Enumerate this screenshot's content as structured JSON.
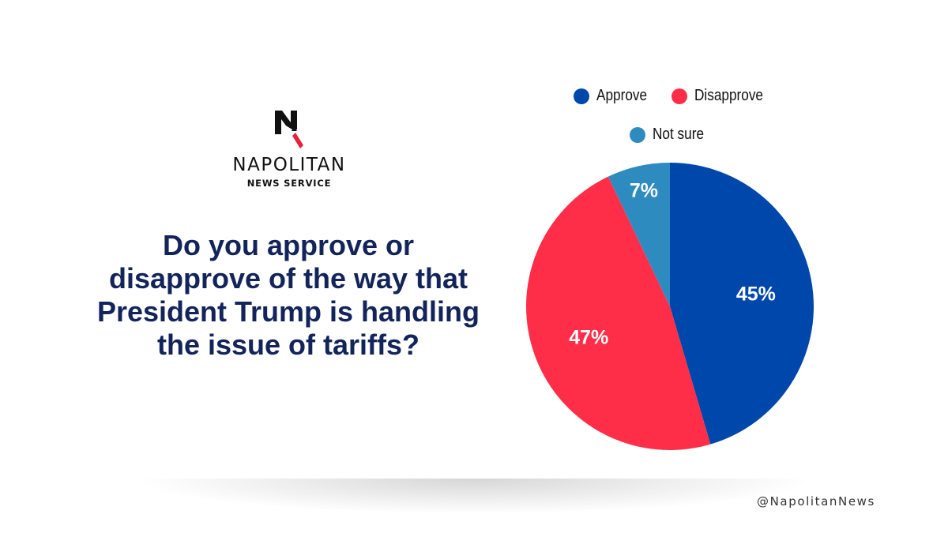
{
  "brand": {
    "name": "NAPOLITAN",
    "subtitle": "NEWS SERVICE"
  },
  "question": "Do you approve or disapprove of the way that President Trump is handling the issue of tariffs?",
  "handle": "@NapolitanNews",
  "chart_data": {
    "type": "pie",
    "title": "",
    "slices": [
      {
        "label": "Approve",
        "value": 45,
        "display": "45%",
        "color": "#0047ab"
      },
      {
        "label": "Disapprove",
        "value": 47,
        "display": "47%",
        "color": "#fe2e48"
      },
      {
        "label": "Not sure",
        "value": 7,
        "display": "7%",
        "color": "#2e8bc0"
      }
    ],
    "start_angle_deg": 0,
    "direction": "clockwise",
    "legend_position": "top"
  }
}
